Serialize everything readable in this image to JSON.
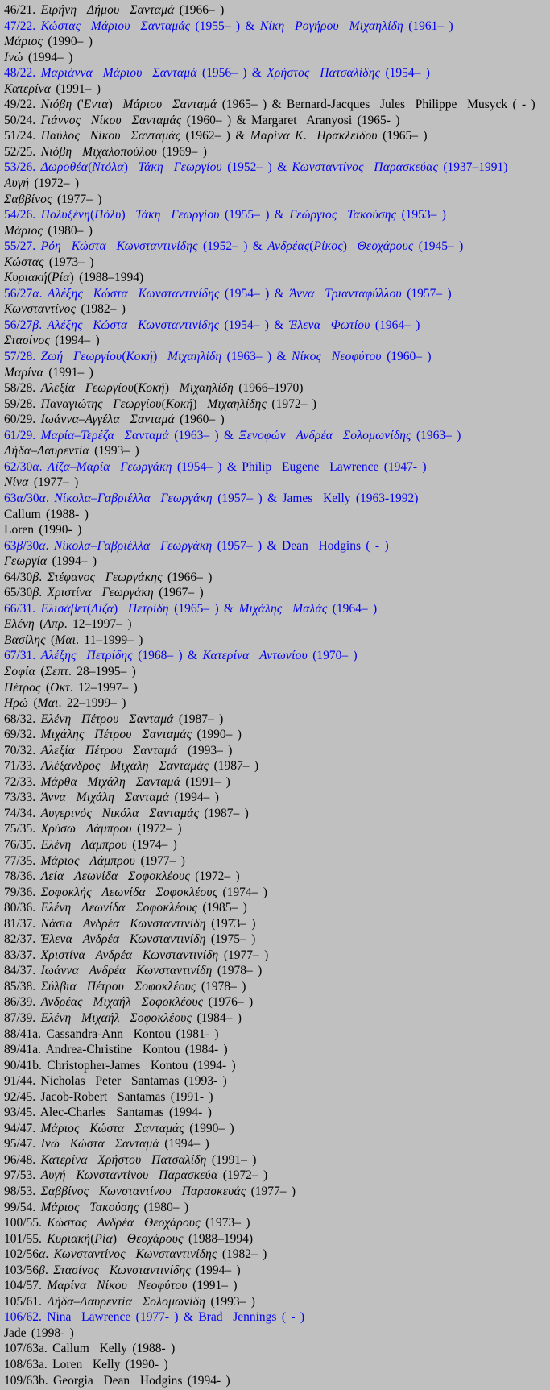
{
  "page": {
    "background": "#c0c0c0",
    "text_color": "#000000",
    "link_color": "#0000ee"
  },
  "entries": [
    {
      "text": "46/21. Ειρήνη  Δήμου  Σανταμά (1966– )",
      "link": false
    },
    {
      "text": "47/22. Κώστας  Μάριου  Σανταμάς (1955– ) & Νίκη  Ρογήρου  Μιχαηλίδη (1961– )",
      "link": true
    },
    {
      "text": "Μάριος (1990– )",
      "link": false
    },
    {
      "text": "Ινώ (1994– )",
      "link": false
    },
    {
      "text": "48/22. Μαριάννα  Μάριου  Σανταμά (1956– ) & Χρήστος  Πατσαλίδης (1954– )",
      "link": true
    },
    {
      "text": "Κατερίνα (1991– )",
      "link": false
    },
    {
      "text": "49/22. Νιόβη ('Εντα)  Μάριου  Σανταμά (1965– ) & Bernard-Jacques  Jules  Philippe  Musyck ( - )",
      "link": false
    },
    {
      "text": "50/24. Γιάννος  Νίκου  Σανταμάς (1960– ) & Margaret  Aranyosi (1965- )",
      "link": false
    },
    {
      "text": "51/24. Παύλος  Νίκου  Σανταμάς (1962– ) & Μαρίνα Κ.  Ηρακλείδου (1965– )",
      "link": false
    },
    {
      "text": "52/25. Νιόβη  Μιχαλοπούλου (1969– )",
      "link": false
    },
    {
      "text": "53/26. Δωροθέα(Ντόλα)  Τάκη  Γεωργίου (1952– ) & Κωνσταντίνος  Παρασκεύας (1937–1991)",
      "link": true
    },
    {
      "text": "Αυγή (1972– )",
      "link": false
    },
    {
      "text": "Σαββίνος (1977– )",
      "link": false
    },
    {
      "text": "54/26. Πολυξένη(Πόλυ)  Τάκη  Γεωργίου (1955– ) & Γεώργιος  Τακούσης (1953– )",
      "link": true
    },
    {
      "text": "Μάριος (1980– )",
      "link": false
    },
    {
      "text": "55/27. Ρόη  Κώστα  Κωνσταντινίδης (1952– ) & Ανδρέας(Ρίκος)  Θεοχάρους (1945– )",
      "link": true
    },
    {
      "text": "Κώστας (1973– )",
      "link": false
    },
    {
      "text": "Κυριακή(Ρία) (1988–1994)",
      "link": false
    },
    {
      "text": "56/27α. Αλέξης  Κώστα  Κωνσταντινίδης (1954– ) & Άννα  Τριανταφύλλου (1957– )",
      "link": true
    },
    {
      "text": "Κωνσταντίνος (1982– )",
      "link": false
    },
    {
      "text": "56/27β. Αλέξης  Κώστα  Κωνσταντινίδης (1954– ) & Έλενα  Φωτίου (1964– )",
      "link": true
    },
    {
      "text": "Στασίνος (1994– )",
      "link": false
    },
    {
      "text": "57/28. Ζωή  Γεωργίου(Κοκή)  Μιχαηλίδη (1963– ) & Νίκος  Νεοφύτου (1960– )",
      "link": true
    },
    {
      "text": "Μαρίνα (1991– )",
      "link": false
    },
    {
      "text": "58/28. Αλεξία  Γεωργίου(Κοκή)  Μιχαηλίδη (1966–1970)",
      "link": false
    },
    {
      "text": "59/28. Παναγιώτης  Γεωργίου(Κοκή)  Μιχαηλίδης (1972– )",
      "link": false
    },
    {
      "text": "60/29. Ιωάννα–Αγγέλα  Σανταμά (1960– )",
      "link": false
    },
    {
      "text": "61/29. Μαρία–Τερέζα  Σανταμά (1963– ) & Ξενοφών  Ανδρέα  Σολομωνίδης (1963– )",
      "link": true
    },
    {
      "text": "Λήδα–Λαυρεντία (1993– )",
      "link": false
    },
    {
      "text": "62/30α. Λίζα–Μαρία  Γεωργάκη (1954– ) & Philip  Eugene  Lawrence (1947- )",
      "link": true
    },
    {
      "text": "Νίνα (1977– )",
      "link": false
    },
    {
      "text": "63α/30α. Νίκολα–Γαβριέλλα  Γεωργάκη (1957– ) & James  Kelly (1963-1992)",
      "link": true
    },
    {
      "text": "Callum (1988- )",
      "link": false
    },
    {
      "text": "Loren (1990- )",
      "link": false
    },
    {
      "text": "63β/30α. Νίκολα–Γαβριέλλα  Γεωργάκη (1957– ) & Dean  Hodgins ( - )",
      "link": true
    },
    {
      "text": "Γεωργία (1994– )",
      "link": false
    },
    {
      "text": "64/30β. Στέφανος  Γεωργάκης (1966– )",
      "link": false
    },
    {
      "text": "65/30β. Χριστίνα  Γεωργάκη (1967– )",
      "link": false
    },
    {
      "text": "66/31. Ελισάβετ(Λίζα)  Πετρίδη (1965– ) & Μιχάλης  Μαλάς (1964– )",
      "link": true
    },
    {
      "text": "Ελένη (Απρ. 12–1997– )",
      "link": false
    },
    {
      "text": "Βασίλης (Μαι. 11–1999– )",
      "link": false
    },
    {
      "text": "67/31. Αλέξης  Πετρίδης (1968– ) & Κατερίνα  Αντωνίου (1970– )",
      "link": true
    },
    {
      "text": "Σοφία (Σεπτ. 28–1995– )",
      "link": false
    },
    {
      "text": "Πέτρος (Οκτ. 12–1997– )",
      "link": false
    },
    {
      "text": "Ηρώ (Μαι. 22–1999– )",
      "link": false
    },
    {
      "text": "68/32. Ελένη  Πέτρου  Σανταμά (1987– )",
      "link": false
    },
    {
      "text": "69/32. Μιχάλης  Πέτρου  Σανταμάς (1990– )",
      "link": false
    },
    {
      "text": "70/32. Αλεξία  Πέτρου  Σανταμά  (1993– )",
      "link": false
    },
    {
      "text": "71/33. Αλέξανδρος  Μιχάλη  Σανταμάς (1987– )",
      "link": false
    },
    {
      "text": "72/33. Μάρθα  Μιχάλη  Σανταμά (1991– )",
      "link": false
    },
    {
      "text": "73/33. Άννα  Μιχάλη  Σανταμά (1994– )",
      "link": false
    },
    {
      "text": "74/34. Αυγερινός  Νικόλα  Σανταμάς (1987– )",
      "link": false
    },
    {
      "text": "75/35. Χρύσω  Λάμπρου (1972– )",
      "link": false
    },
    {
      "text": "76/35. Ελένη  Λάμπρου (1974– )",
      "link": false
    },
    {
      "text": "77/35. Μάριος  Λάμπρου (1977– )",
      "link": false
    },
    {
      "text": "78/36. Λεία  Λεωνίδα  Σοφοκλέους (1972– )",
      "link": false
    },
    {
      "text": "79/36. Σοφοκλής  Λεωνίδα  Σοφοκλέους (1974– )",
      "link": false
    },
    {
      "text": "80/36. Ελένη  Λεωνίδα  Σοφοκλέους (1985– )",
      "link": false
    },
    {
      "text": "81/37. Νάσια  Ανδρέα  Κωνσταντινίδη (1973– )",
      "link": false
    },
    {
      "text": "82/37. Έλενα  Ανδρέα  Κωνσταντινίδη (1975– )",
      "link": false
    },
    {
      "text": "83/37. Χριστίνα  Ανδρέα  Κωνσταντινίδη (1977– )",
      "link": false
    },
    {
      "text": "84/37. Ιωάννα  Ανδρέα  Κωνσταντινίδη (1978– )",
      "link": false
    },
    {
      "text": "85/38. Σύλβια  Πέτρου  Σοφοκλέους (1978– )",
      "link": false
    },
    {
      "text": "86/39. Ανδρέας  Μιχαήλ  Σοφοκλέους (1976– )",
      "link": false
    },
    {
      "text": "87/39. Ελένη  Μιχαήλ  Σοφοκλέους (1984– )",
      "link": false
    },
    {
      "text": "88/41a. Cassandra-Ann  Kontou (1981- )",
      "link": false
    },
    {
      "text": "89/41a. Andrea-Christine  Kontou (1984- )",
      "link": false
    },
    {
      "text": "90/41b. Christopher-James  Kontou (1994- )",
      "link": false
    },
    {
      "text": "91/44. Nicholas  Peter  Santamas (1993- )",
      "link": false
    },
    {
      "text": "92/45. Jacob-Robert  Santamas (1991- )",
      "link": false
    },
    {
      "text": "93/45. Alec-Charles  Santamas (1994- )",
      "link": false
    },
    {
      "text": "94/47. Μάριος  Κώστα  Σανταμάς (1990– )",
      "link": false
    },
    {
      "text": "95/47. Ινώ  Κώστα  Σανταμά (1994– )",
      "link": false
    },
    {
      "text": "96/48. Κατερίνα  Χρήστου  Πατσαλίδη (1991– )",
      "link": false
    },
    {
      "text": "97/53. Αυγή  Κωνσταντίνου  Παρασκεύα (1972– )",
      "link": false
    },
    {
      "text": "98/53. Σαββίνος  Κωνσταντίνου  Παρασκευάς (1977– )",
      "link": false
    },
    {
      "text": "99/54. Μάριος  Τακούσης (1980– )",
      "link": false
    },
    {
      "text": "100/55. Κώστας  Ανδρέα  Θεοχάρους (1973– )",
      "link": false
    },
    {
      "text": "101/55. Κυριακή(Ρία)  Θεοχάρους (1988–1994)",
      "link": false
    },
    {
      "text": "102/56α. Κωνσταντίνος  Κωνσταντινίδης (1982– )",
      "link": false
    },
    {
      "text": "103/56β. Στασίνος  Κωνσταντινίδης (1994– )",
      "link": false
    },
    {
      "text": "104/57. Μαρίνα  Νίκου  Νεοφύτου (1991– )",
      "link": false
    },
    {
      "text": "105/61. Λήδα–Λαυρεντία  Σολομωνίδη (1993– )",
      "link": false
    },
    {
      "text": "106/62. Nina  Lawrence (1977- ) & Brad  Jennings ( - )",
      "link": true
    },
    {
      "text": "Jade (1998- )",
      "link": false
    },
    {
      "text": "107/63a. Callum  Kelly (1988- )",
      "link": false
    },
    {
      "text": "108/63a. Loren  Kelly (1990- )",
      "link": false
    },
    {
      "text": "109/63b. Georgia  Dean  Hodgins (1994- )",
      "link": false
    }
  ]
}
